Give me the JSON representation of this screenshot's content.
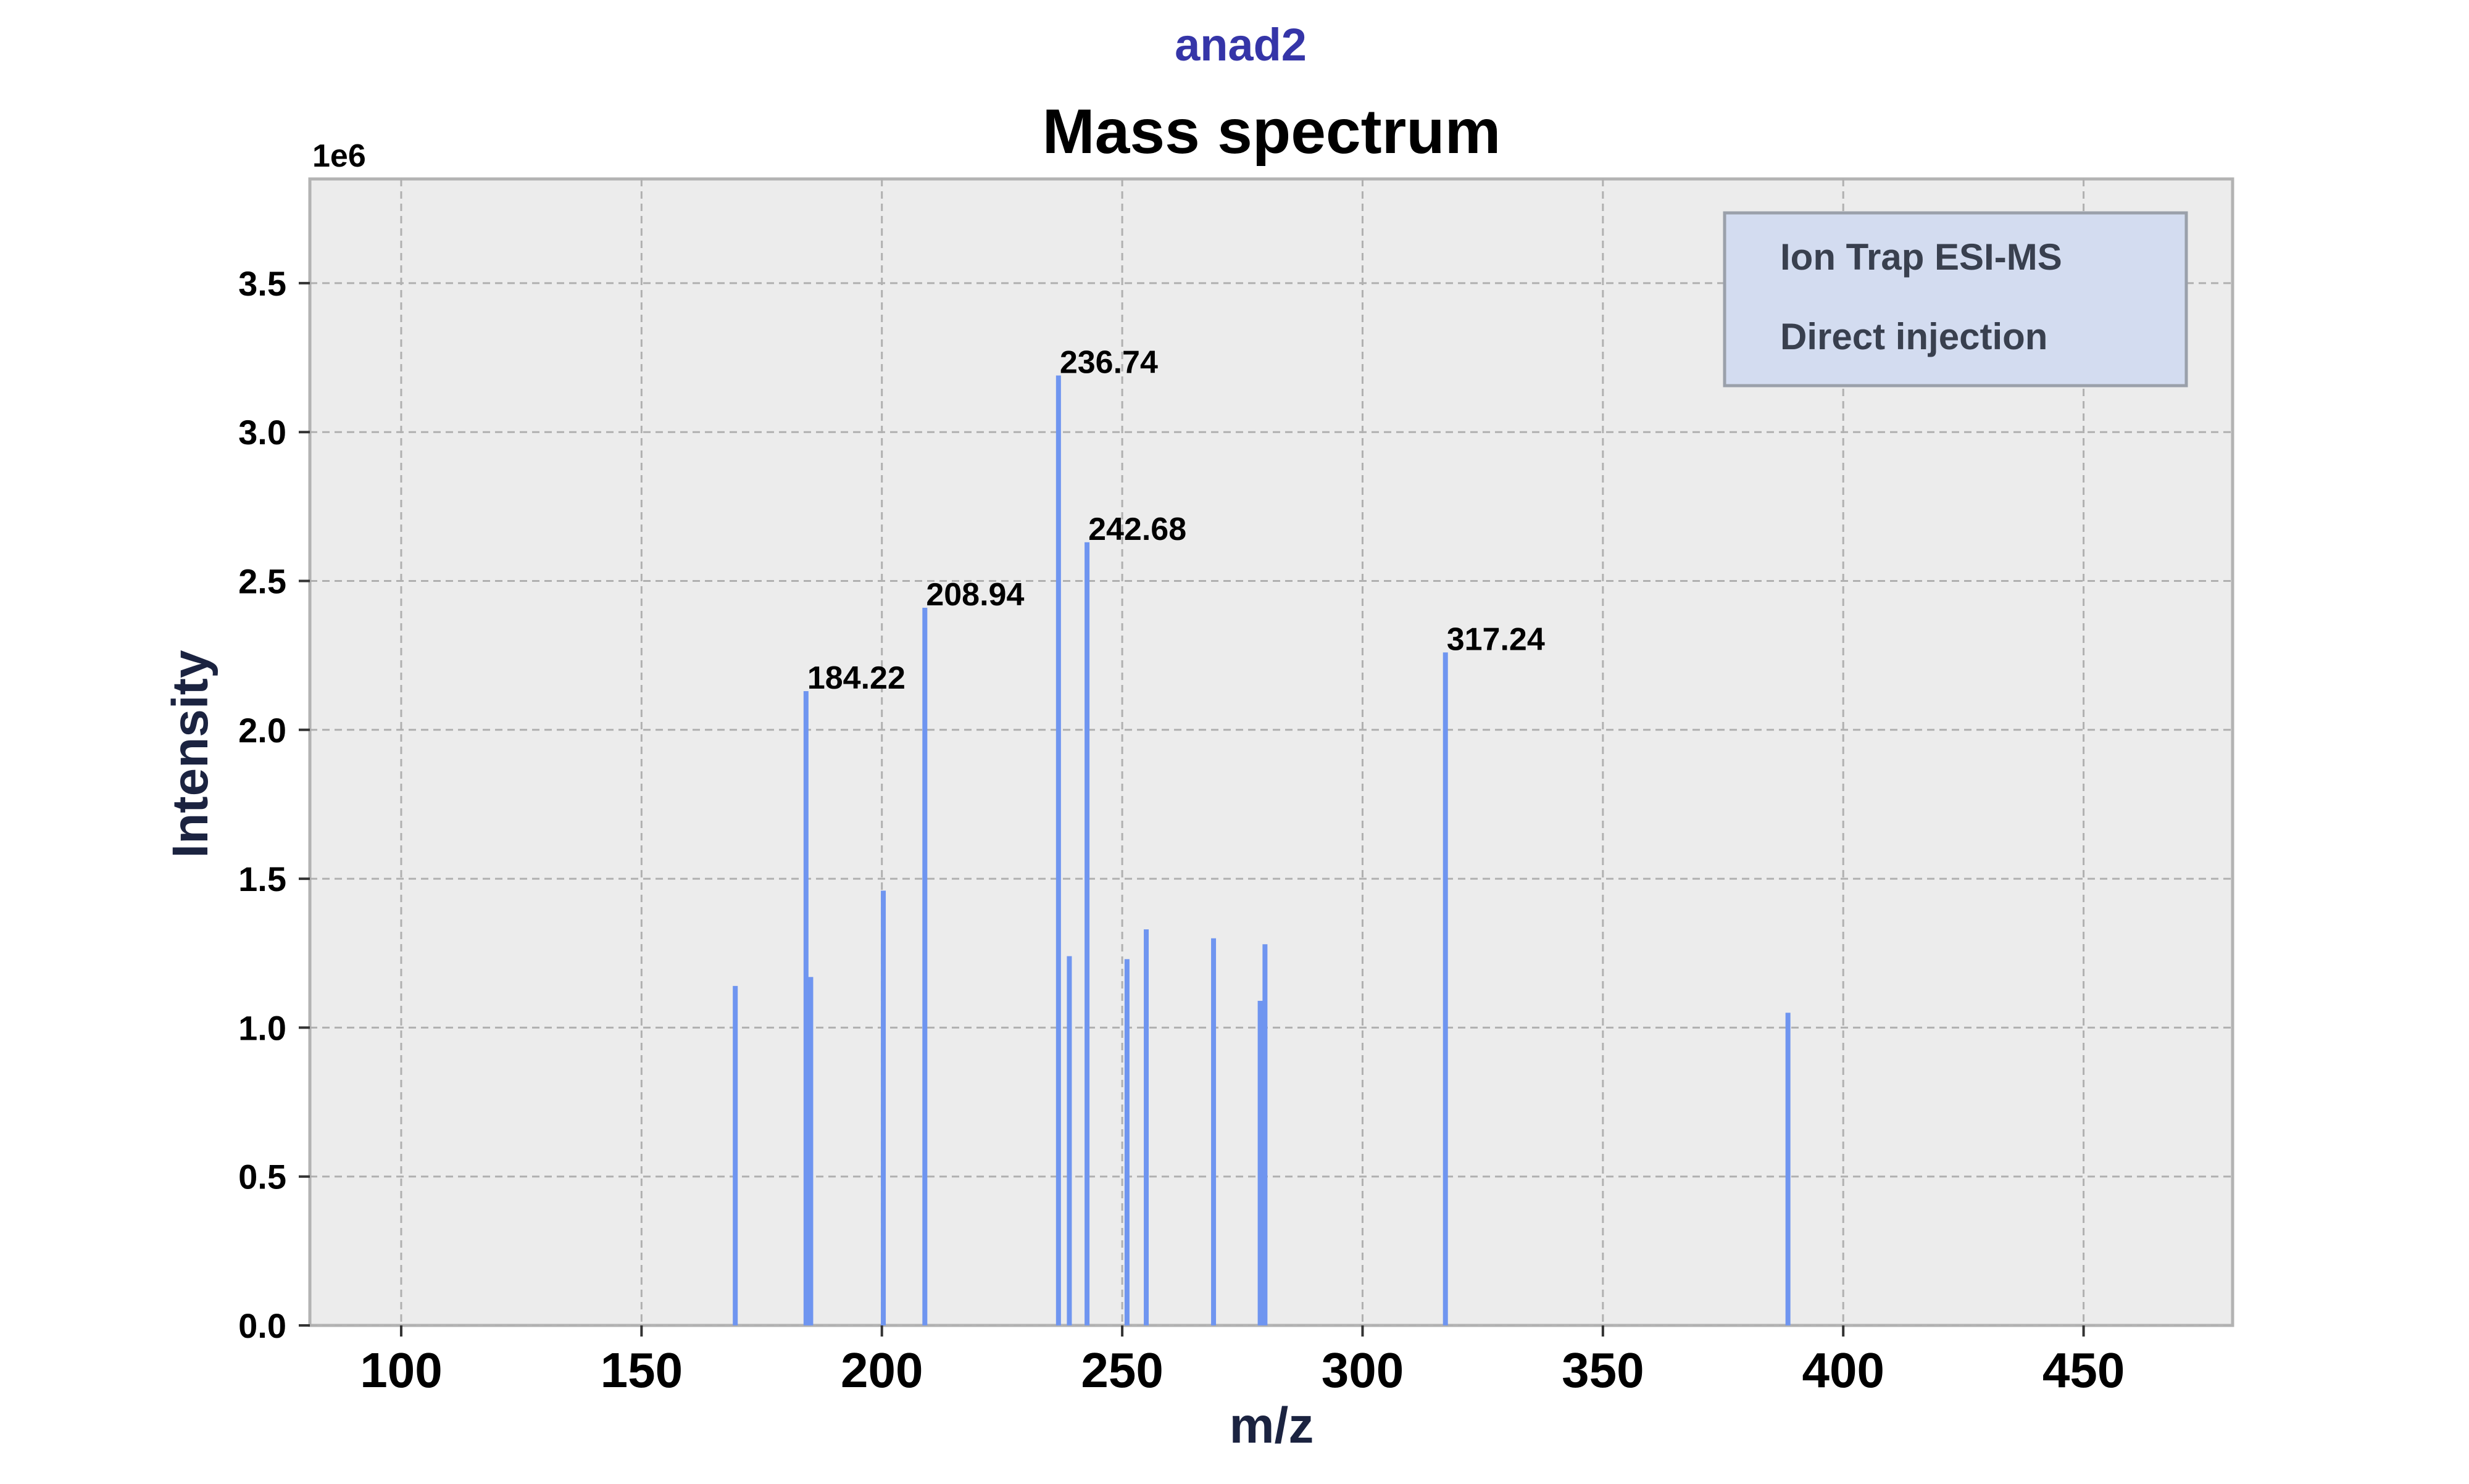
{
  "page": {
    "suptitle": "anad2"
  },
  "chart_data": {
    "type": "bar",
    "title": "Mass spectrum",
    "xlabel": "m/z",
    "ylabel": "Intensity",
    "y_offset_label": "1e6",
    "xlim": [
      81,
      481
    ],
    "ylim": [
      0,
      3850000
    ],
    "x_ticks": [
      100,
      150,
      200,
      250,
      300,
      350,
      400,
      450
    ],
    "x_tick_labels": [
      "100",
      "150",
      "200",
      "250",
      "300",
      "350",
      "400",
      "450"
    ],
    "y_ticks": [
      0,
      500000,
      1000000,
      1500000,
      2000000,
      2500000,
      3000000,
      3500000
    ],
    "y_tick_labels": [
      "0.0",
      "0.5",
      "1.0",
      "1.5",
      "2.0",
      "2.5",
      "3.0",
      "3.5"
    ],
    "grid": true,
    "legend": {
      "placement": "top-right",
      "entries": [
        "Ion Trap ESI-MS",
        "Direct injection"
      ]
    },
    "series": [
      {
        "x": [
          169.5,
          184.22,
          185.2,
          200.3,
          208.94,
          236.74,
          239.0,
          242.68,
          251.0,
          255.0,
          269.0,
          278.7,
          279.7,
          317.24,
          388.5
        ],
        "values": [
          1140000,
          2130000,
          1170000,
          1460000,
          2410000,
          3190000,
          1240000,
          2630000,
          1230000,
          1330000,
          1300000,
          1090000,
          1280000,
          2260000,
          1050000
        ]
      }
    ],
    "annotations": [
      {
        "x": 184.22,
        "y": 2130000,
        "text": "184.22"
      },
      {
        "x": 208.94,
        "y": 2410000,
        "text": "208.94"
      },
      {
        "x": 236.74,
        "y": 3190000,
        "text": "236.74"
      },
      {
        "x": 242.68,
        "y": 2630000,
        "text": "242.68"
      },
      {
        "x": 317.24,
        "y": 2260000,
        "text": "317.24"
      }
    ],
    "colors": {
      "bar": "#6f95f0",
      "plot_background": "#ececec",
      "suptitle": "#3535a8",
      "axis_label": "#1b2340",
      "legend_background": "#d3dcf0",
      "legend_border": "#9aa0aa",
      "legend_text": "#39404f"
    }
  }
}
